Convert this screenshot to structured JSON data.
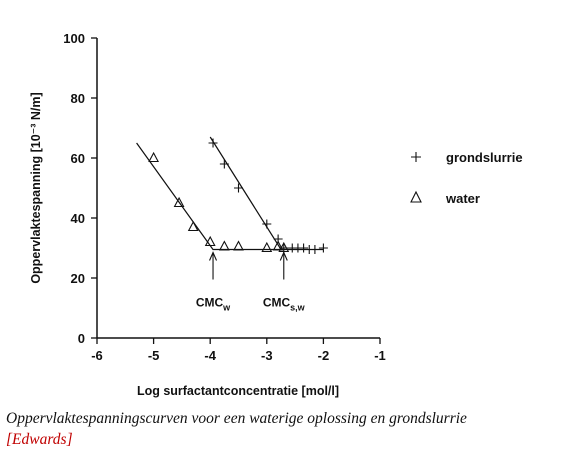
{
  "chart_data": {
    "type": "scatter",
    "xlabel": "Log surfactantconcentratie [mol/l]",
    "ylabel": "Oppervlaktespanning [10⁻³ N/m]",
    "xlim": [
      -6,
      -1
    ],
    "ylim": [
      0,
      100
    ],
    "x_ticks": [
      "-6",
      "-5",
      "-4",
      "-3",
      "-2",
      "-1"
    ],
    "y_ticks": [
      "0",
      "20",
      "40",
      "60",
      "80",
      "100"
    ],
    "grid": false,
    "legend_position": "right",
    "series": [
      {
        "name": "grondslurrie",
        "marker": "plus",
        "points": [
          {
            "x": -3.95,
            "y": 65
          },
          {
            "x": -3.75,
            "y": 58
          },
          {
            "x": -3.5,
            "y": 50
          },
          {
            "x": -3.0,
            "y": 38
          },
          {
            "x": -2.8,
            "y": 33
          },
          {
            "x": -2.7,
            "y": 30
          },
          {
            "x": -2.55,
            "y": 30
          },
          {
            "x": -2.45,
            "y": 30
          },
          {
            "x": -2.35,
            "y": 30
          },
          {
            "x": -2.25,
            "y": 29.5
          },
          {
            "x": -2.15,
            "y": 29.5
          },
          {
            "x": -2.0,
            "y": 30
          }
        ],
        "fit": [
          {
            "x": -4.0,
            "y": 67
          },
          {
            "x": -2.75,
            "y": 29.5
          },
          {
            "x": -2.0,
            "y": 29.5
          }
        ]
      },
      {
        "name": "water",
        "marker": "triangle",
        "points": [
          {
            "x": -5.0,
            "y": 60
          },
          {
            "x": -4.55,
            "y": 45
          },
          {
            "x": -4.3,
            "y": 37
          },
          {
            "x": -4.0,
            "y": 32
          },
          {
            "x": -3.75,
            "y": 30.5
          },
          {
            "x": -3.5,
            "y": 30.5
          },
          {
            "x": -3.0,
            "y": 30
          },
          {
            "x": -2.8,
            "y": 30.5
          },
          {
            "x": -2.7,
            "y": 30
          }
        ],
        "fit": [
          {
            "x": -5.3,
            "y": 65
          },
          {
            "x": -3.95,
            "y": 29.5
          },
          {
            "x": -2.75,
            "y": 29.5
          }
        ]
      }
    ],
    "annotations": [
      {
        "label_main": "CMC",
        "label_sub": "w",
        "x": -3.95
      },
      {
        "label_main": "CMC",
        "label_sub": "s,w",
        "x": -2.7
      }
    ]
  },
  "caption": {
    "text": "Oppervlaktespanningscurven voor een waterige oplossing en grondslurrie",
    "ref_open": "[",
    "ref": "Edwards",
    "ref_close": "]"
  }
}
